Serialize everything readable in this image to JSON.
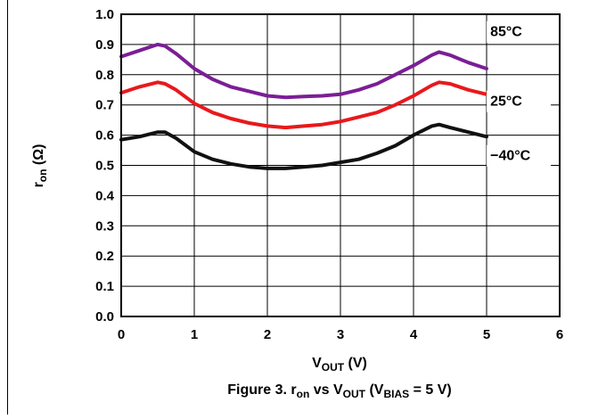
{
  "chart_data": {
    "type": "line",
    "title": "",
    "caption": {
      "prefix": "Figure 3. r",
      "sub_on": "on",
      "mid": " vs V",
      "sub_out": "OUT",
      "mid2": " (V",
      "sub_bias": "BIAS",
      "suffix": " = 5 V)"
    },
    "xlabel": {
      "main": "V",
      "sub": "OUT",
      "rest": "  (V)"
    },
    "ylabel": {
      "main": "r",
      "sub": "on",
      "rest": " (Ω)"
    },
    "xlim": [
      0,
      6
    ],
    "ylim": [
      0,
      1.0
    ],
    "x_ticks": [
      "0",
      "1",
      "2",
      "3",
      "4",
      "5",
      "6"
    ],
    "y_ticks": [
      "0.0",
      "0.1",
      "0.2",
      "0.3",
      "0.4",
      "0.5",
      "0.6",
      "0.7",
      "0.8",
      "0.9",
      "1.0"
    ],
    "grid": true,
    "x": [
      0,
      0.25,
      0.5,
      0.6,
      0.75,
      1.0,
      1.25,
      1.5,
      1.75,
      2.0,
      2.25,
      2.5,
      2.75,
      3.0,
      3.25,
      3.5,
      3.75,
      4.0,
      4.25,
      4.35,
      4.5,
      4.75,
      5.0
    ],
    "series": [
      {
        "name": "85°C",
        "color": "#7B1E96",
        "values": [
          0.86,
          0.88,
          0.9,
          0.895,
          0.87,
          0.82,
          0.785,
          0.76,
          0.745,
          0.73,
          0.725,
          0.728,
          0.73,
          0.735,
          0.75,
          0.77,
          0.8,
          0.83,
          0.865,
          0.875,
          0.865,
          0.84,
          0.82
        ]
      },
      {
        "name": "25°C",
        "color": "#E8191C",
        "values": [
          0.74,
          0.76,
          0.775,
          0.77,
          0.75,
          0.705,
          0.675,
          0.655,
          0.64,
          0.63,
          0.625,
          0.63,
          0.635,
          0.645,
          0.66,
          0.675,
          0.7,
          0.73,
          0.765,
          0.775,
          0.77,
          0.75,
          0.735
        ]
      },
      {
        "name": "−40°C",
        "color": "#111111",
        "values": [
          0.585,
          0.595,
          0.61,
          0.61,
          0.59,
          0.545,
          0.52,
          0.505,
          0.495,
          0.49,
          0.49,
          0.495,
          0.5,
          0.51,
          0.52,
          0.54,
          0.565,
          0.6,
          0.63,
          0.635,
          0.625,
          0.61,
          0.595
        ]
      }
    ]
  }
}
